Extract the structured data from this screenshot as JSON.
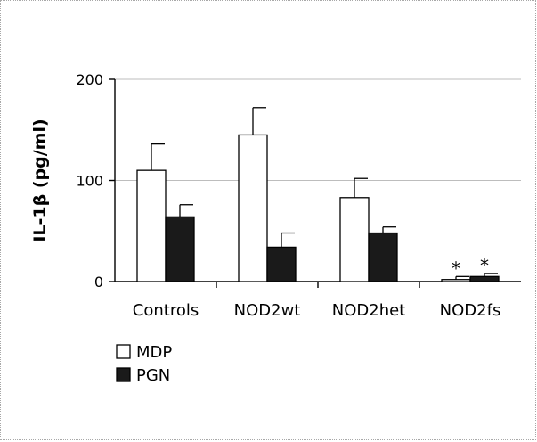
{
  "chart_data": {
    "type": "bar",
    "title": "",
    "xlabel": "",
    "ylabel": "IL-1β (pg/ml)",
    "ylim": [
      0,
      200
    ],
    "yticks": [
      0,
      100,
      200
    ],
    "grid": true,
    "categories": [
      "Controls",
      "NOD2wt",
      "NOD2het",
      "NOD2fs"
    ],
    "series": [
      {
        "name": "MDP",
        "color": "#ffffff",
        "values": [
          110,
          145,
          83,
          2
        ],
        "errors": [
          26,
          27,
          19,
          3
        ],
        "annotations": [
          "",
          "",
          "",
          "*"
        ]
      },
      {
        "name": "PGN",
        "color": "#1a1a1a",
        "values": [
          64,
          34,
          48,
          5
        ],
        "errors": [
          12,
          14,
          6,
          3
        ],
        "annotations": [
          "",
          "",
          "",
          "*"
        ]
      }
    ],
    "legend_position": "bottom-left"
  }
}
